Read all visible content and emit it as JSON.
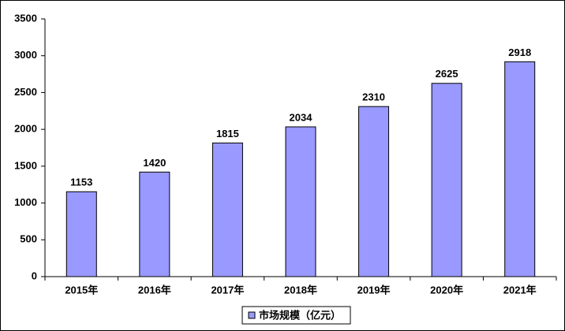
{
  "chart_data": {
    "type": "bar",
    "categories": [
      "2015年",
      "2016年",
      "2017年",
      "2018年",
      "2019年",
      "2020年",
      "2021年"
    ],
    "series": [
      {
        "name": "市场规模（亿元）",
        "color": "#9999ff",
        "values": [
          1153,
          1420,
          1815,
          2034,
          2310,
          2625,
          2918
        ]
      }
    ],
    "ylim": [
      0,
      3500
    ],
    "yticks": [
      0,
      500,
      1000,
      1500,
      2000,
      2500,
      3000,
      3500
    ],
    "grid": false,
    "legend": "bottom"
  }
}
